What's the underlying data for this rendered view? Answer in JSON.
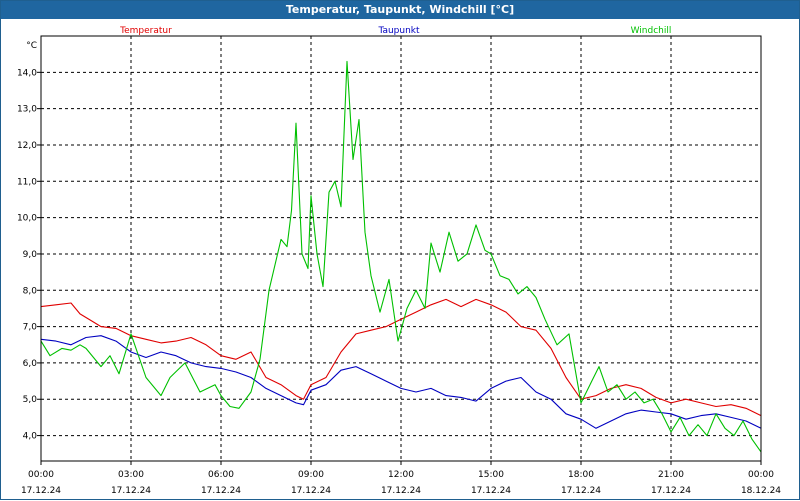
{
  "window": {
    "title": "Temperatur, Taupunkt, Windchill [°C]"
  },
  "colors": {
    "titlebar": "#1f66a0",
    "grid": "#000000",
    "background": "#ffffff"
  },
  "chart_data": {
    "type": "line",
    "title": "Temperatur, Taupunkt, Windchill [°C]",
    "ylabel": "°C",
    "xlabel": "",
    "ylim": [
      3.3,
      15.0
    ],
    "xlim": [
      0,
      24
    ],
    "grid": true,
    "legend_position": "top",
    "yticks": [
      {
        "value": 4.0,
        "label": "4,0"
      },
      {
        "value": 5.0,
        "label": "5,0"
      },
      {
        "value": 6.0,
        "label": "6,0"
      },
      {
        "value": 7.0,
        "label": "7,0"
      },
      {
        "value": 8.0,
        "label": "8,0"
      },
      {
        "value": 9.0,
        "label": "9,0"
      },
      {
        "value": 10.0,
        "label": "10,0"
      },
      {
        "value": 11.0,
        "label": "11,0"
      },
      {
        "value": 12.0,
        "label": "12,0"
      },
      {
        "value": 13.0,
        "label": "13,0"
      },
      {
        "value": 14.0,
        "label": "14,0"
      }
    ],
    "xticks": [
      {
        "value": 0,
        "time": "00:00",
        "date": "17.12.24"
      },
      {
        "value": 3,
        "time": "03:00",
        "date": "17.12.24"
      },
      {
        "value": 6,
        "time": "06:00",
        "date": "17.12.24"
      },
      {
        "value": 9,
        "time": "09:00",
        "date": "17.12.24"
      },
      {
        "value": 12,
        "time": "12:00",
        "date": "17.12.24"
      },
      {
        "value": 15,
        "time": "15:00",
        "date": "17.12.24"
      },
      {
        "value": 18,
        "time": "18:00",
        "date": "17.12.24"
      },
      {
        "value": 21,
        "time": "21:00",
        "date": "17.12.24"
      },
      {
        "value": 24,
        "time": "00:00",
        "date": "18.12.24"
      }
    ],
    "series": [
      {
        "name": "Temperatur",
        "color": "#e00000",
        "x": [
          0,
          0.5,
          1,
          1.3,
          1.7,
          2,
          2.5,
          3,
          3.5,
          4,
          4.5,
          5,
          5.5,
          6,
          6.5,
          7,
          7.5,
          8,
          8.5,
          8.75,
          9,
          9.5,
          10,
          10.5,
          11,
          11.5,
          12,
          12.5,
          13,
          13.5,
          14,
          14.5,
          15,
          15.5,
          16,
          16.5,
          17,
          17.5,
          18,
          18.5,
          19,
          19.5,
          20,
          20.5,
          21,
          21.5,
          22,
          22.5,
          23,
          23.5,
          24
        ],
        "values": [
          7.55,
          7.6,
          7.65,
          7.35,
          7.15,
          7.0,
          6.95,
          6.75,
          6.65,
          6.55,
          6.6,
          6.7,
          6.5,
          6.2,
          6.1,
          6.3,
          5.6,
          5.4,
          5.1,
          5.0,
          5.4,
          5.6,
          6.3,
          6.8,
          6.9,
          7.0,
          7.2,
          7.4,
          7.6,
          7.75,
          7.55,
          7.75,
          7.6,
          7.4,
          7.0,
          6.9,
          6.4,
          5.6,
          5.0,
          5.1,
          5.3,
          5.4,
          5.3,
          5.05,
          4.9,
          5.0,
          4.9,
          4.8,
          4.85,
          4.75,
          4.55
        ]
      },
      {
        "name": "Taupunkt",
        "color": "#0000c0",
        "x": [
          0,
          0.5,
          1,
          1.5,
          2,
          2.5,
          3,
          3.5,
          4,
          4.5,
          5,
          5.5,
          6,
          6.5,
          7,
          7.5,
          8,
          8.5,
          8.75,
          9,
          9.5,
          10,
          10.5,
          11,
          11.5,
          12,
          12.5,
          13,
          13.5,
          14,
          14.5,
          15,
          15.5,
          16,
          16.5,
          17,
          17.5,
          18,
          18.5,
          19,
          19.5,
          20,
          20.5,
          21,
          21.5,
          22,
          22.5,
          23,
          23.5,
          24
        ],
        "values": [
          6.65,
          6.6,
          6.5,
          6.7,
          6.75,
          6.6,
          6.3,
          6.15,
          6.3,
          6.2,
          6.0,
          5.9,
          5.85,
          5.75,
          5.6,
          5.3,
          5.1,
          4.9,
          4.85,
          5.25,
          5.4,
          5.8,
          5.9,
          5.7,
          5.5,
          5.3,
          5.2,
          5.3,
          5.1,
          5.05,
          4.95,
          5.3,
          5.5,
          5.6,
          5.2,
          5.0,
          4.6,
          4.45,
          4.2,
          4.4,
          4.6,
          4.7,
          4.65,
          4.6,
          4.45,
          4.55,
          4.6,
          4.5,
          4.4,
          4.2
        ]
      },
      {
        "name": "Windchill",
        "color": "#00c000",
        "x": [
          0,
          0.3,
          0.7,
          1,
          1.3,
          1.5,
          2,
          2.3,
          2.6,
          3,
          3.5,
          4,
          4.3,
          4.8,
          5.3,
          5.8,
          6,
          6.3,
          6.6,
          7,
          7.3,
          7.6,
          8,
          8.2,
          8.35,
          8.5,
          8.7,
          8.9,
          9,
          9.2,
          9.4,
          9.6,
          9.8,
          10,
          10.2,
          10.4,
          10.6,
          10.8,
          11,
          11.3,
          11.6,
          11.9,
          12.2,
          12.5,
          12.8,
          13,
          13.3,
          13.6,
          13.9,
          14.2,
          14.5,
          14.8,
          15,
          15.3,
          15.6,
          15.9,
          16.2,
          16.5,
          16.8,
          17.2,
          17.6,
          18,
          18.3,
          18.6,
          18.9,
          19.2,
          19.5,
          19.8,
          20.1,
          20.4,
          20.7,
          21,
          21.3,
          21.6,
          21.9,
          22.2,
          22.5,
          22.8,
          23.1,
          23.4,
          23.7,
          24
        ],
        "values": [
          6.6,
          6.2,
          6.4,
          6.35,
          6.5,
          6.4,
          5.9,
          6.2,
          5.7,
          6.8,
          5.6,
          5.1,
          5.6,
          6.0,
          5.2,
          5.4,
          5.1,
          4.8,
          4.75,
          5.2,
          6.1,
          8.0,
          9.4,
          9.2,
          10.2,
          12.6,
          9.0,
          8.6,
          10.6,
          9.0,
          8.1,
          10.7,
          11.0,
          10.3,
          14.3,
          11.6,
          12.7,
          9.6,
          8.4,
          7.4,
          8.3,
          6.6,
          7.5,
          8.0,
          7.5,
          9.3,
          8.5,
          9.6,
          8.8,
          9.0,
          9.8,
          9.1,
          9.0,
          8.4,
          8.3,
          7.9,
          8.1,
          7.8,
          7.2,
          6.5,
          6.8,
          4.9,
          5.4,
          5.9,
          5.2,
          5.4,
          5.0,
          5.2,
          4.9,
          5.0,
          4.6,
          4.1,
          4.5,
          4.0,
          4.3,
          4.0,
          4.6,
          4.2,
          4.0,
          4.4,
          3.9,
          3.55
        ]
      }
    ]
  }
}
